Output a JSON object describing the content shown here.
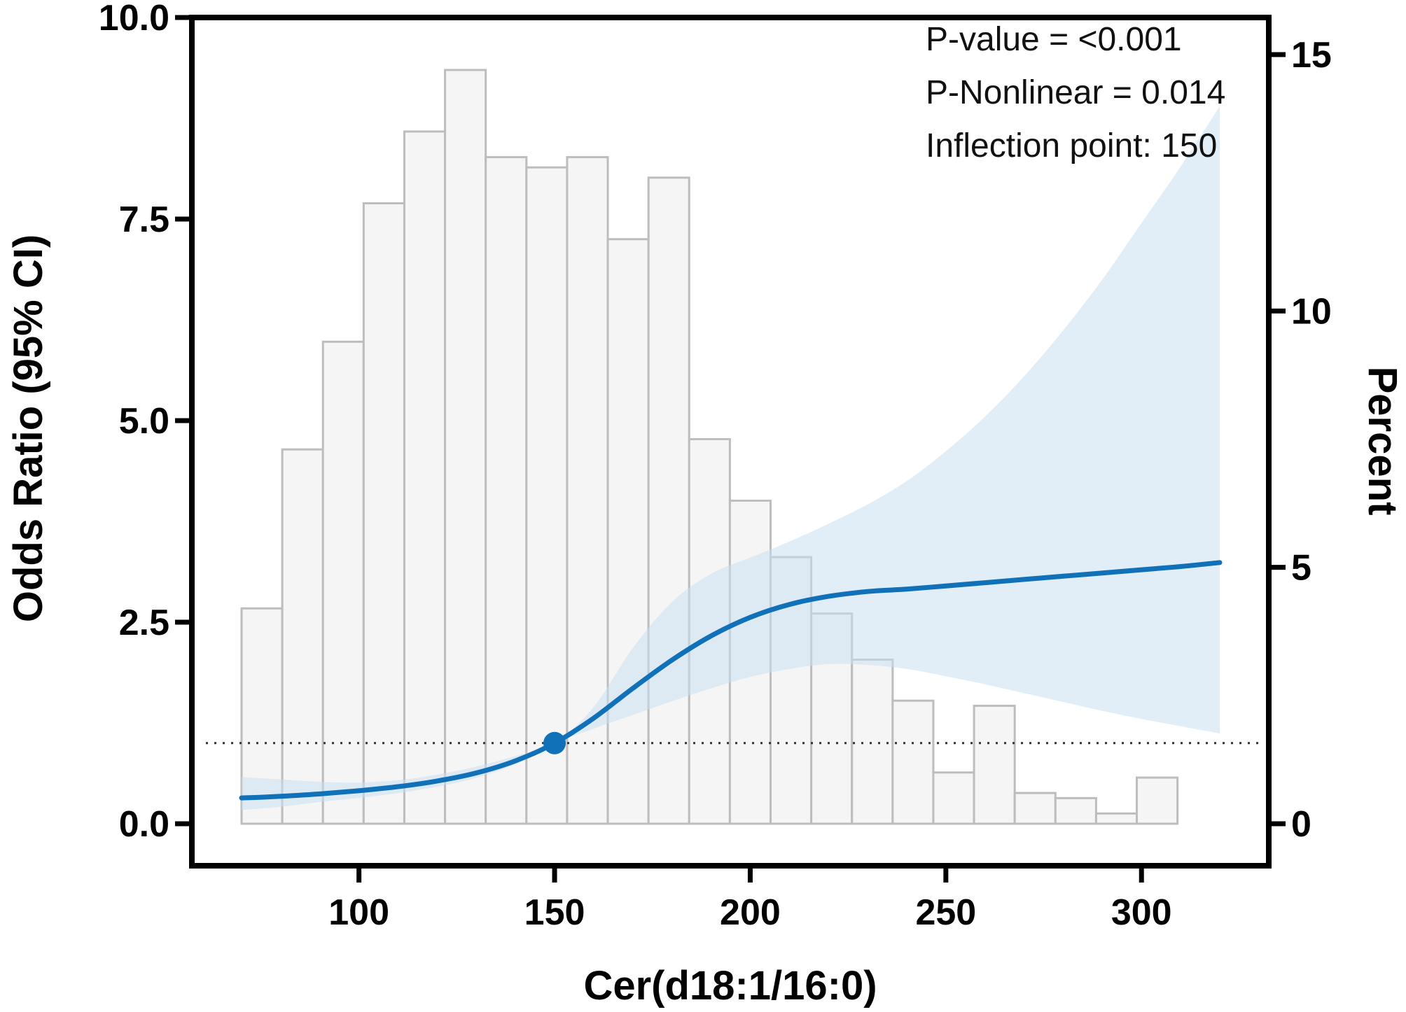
{
  "chart_data": {
    "type": "line",
    "xlabel": "Cer(d18:1/16:0)",
    "ylabel_left": "Odds Ratio (95% CI)",
    "ylabel_right": "Percent",
    "xlim": [
      60,
      330
    ],
    "ylim_left": [
      0,
      10
    ],
    "ylim_right": [
      0,
      16
    ],
    "x_ticks": [
      100,
      150,
      200,
      250,
      300
    ],
    "x_tick_labels": [
      "100",
      "150",
      "200",
      "250",
      "300"
    ],
    "y_left_ticks": [
      0,
      2.5,
      5,
      7.5,
      10
    ],
    "y_left_tick_labels": [
      "0.0",
      "2.5",
      "5.0",
      "7.5",
      "10.0"
    ],
    "y_right_ticks": [
      0,
      5,
      10,
      15
    ],
    "y_right_tick_labels": [
      "0",
      "5",
      "10",
      "15"
    ],
    "reference_line_or": 1,
    "inflection_point": {
      "x": 150,
      "y": 1
    },
    "annotations": [
      "P-value = <0.001",
      "P-Nonlinear = 0.014",
      "Inflection point: 150"
    ],
    "curve": {
      "x": [
        70,
        80,
        90,
        100,
        110,
        120,
        130,
        140,
        150,
        160,
        170,
        180,
        190,
        200,
        210,
        220,
        230,
        240,
        250,
        260,
        270,
        280,
        290,
        300,
        310,
        320
      ],
      "or": [
        0.32,
        0.34,
        0.37,
        0.41,
        0.46,
        0.53,
        0.63,
        0.78,
        1.0,
        1.31,
        1.68,
        2.03,
        2.33,
        2.56,
        2.72,
        2.82,
        2.88,
        2.91,
        2.95,
        2.99,
        3.03,
        3.07,
        3.11,
        3.15,
        3.19,
        3.24
      ],
      "lower": [
        0.17,
        0.21,
        0.27,
        0.32,
        0.38,
        0.46,
        0.57,
        0.74,
        1.0,
        1.18,
        1.35,
        1.52,
        1.68,
        1.82,
        1.92,
        1.98,
        1.97,
        1.92,
        1.83,
        1.73,
        1.62,
        1.51,
        1.4,
        1.3,
        1.21,
        1.12
      ],
      "upper": [
        0.58,
        0.55,
        0.52,
        0.51,
        0.54,
        0.61,
        0.71,
        0.84,
        1.0,
        1.45,
        2.18,
        2.75,
        3.1,
        3.3,
        3.5,
        3.72,
        3.96,
        4.25,
        4.62,
        5.05,
        5.55,
        6.12,
        6.75,
        7.45,
        8.15,
        8.9
      ]
    },
    "histogram": {
      "bin_left": [
        70,
        80.4,
        90.8,
        101.2,
        111.6,
        122,
        132.4,
        142.8,
        153.2,
        163.6,
        174,
        184.4,
        194.8,
        205.2,
        215.6,
        226,
        236.4,
        246.8,
        257.2,
        267.6,
        278,
        288.4,
        298.8,
        309.2
      ],
      "bin_width": 10.4,
      "percent": [
        4.2,
        7.3,
        9.4,
        12.1,
        13.5,
        14.7,
        13.0,
        12.8,
        13.0,
        11.4,
        12.6,
        7.5,
        6.3,
        5.2,
        4.1,
        3.2,
        2.4,
        1.0,
        2.3,
        0.6,
        0.5,
        0.2,
        0.9,
        0.0
      ]
    },
    "colors": {
      "curve": "#1070b8",
      "ci_fill": "#c9def0",
      "bar_fill": "#f6f5f6",
      "bar_stroke": "#bdbdbd",
      "reference_line": "#333333"
    }
  }
}
